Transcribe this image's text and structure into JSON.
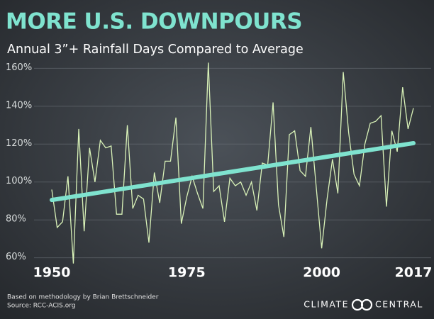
{
  "chart_data": {
    "type": "line",
    "title": "MORE U.S. DOWNPOURS",
    "subtitle": "Annual 3”+ Rainfall Days Compared to Average",
    "x": [
      1950,
      1951,
      1952,
      1953,
      1954,
      1955,
      1956,
      1957,
      1958,
      1959,
      1960,
      1961,
      1962,
      1963,
      1964,
      1965,
      1966,
      1967,
      1968,
      1969,
      1970,
      1971,
      1972,
      1973,
      1974,
      1975,
      1976,
      1977,
      1978,
      1979,
      1980,
      1981,
      1982,
      1983,
      1984,
      1985,
      1986,
      1987,
      1988,
      1989,
      1990,
      1991,
      1992,
      1993,
      1994,
      1995,
      1996,
      1997,
      1998,
      1999,
      2000,
      2001,
      2002,
      2003,
      2004,
      2005,
      2006,
      2007,
      2008,
      2009,
      2010,
      2011,
      2012,
      2013,
      2014,
      2015,
      2016,
      2017
    ],
    "series": [
      {
        "color": "#d9f2b8",
        "values": [
          96,
          76,
          79,
          103,
          57,
          128,
          74,
          118,
          100,
          122,
          118,
          119,
          83,
          83,
          130,
          86,
          93,
          91,
          68,
          105,
          89,
          111,
          111,
          134,
          78,
          92,
          103,
          94,
          86,
          163,
          95,
          98,
          79,
          102,
          98,
          100,
          93,
          100,
          85,
          110,
          109,
          142,
          88,
          71,
          125,
          127,
          106,
          103,
          129,
          97,
          65,
          91,
          112,
          94,
          158,
          126,
          104,
          98,
          120,
          131,
          132,
          135,
          87,
          127,
          116,
          150,
          128,
          139
        ]
      }
    ],
    "trend": {
      "x": [
        1950,
        2017
      ],
      "values": [
        90.5,
        120.5
      ],
      "color": "#7fe3cf"
    },
    "xlim": [
      1950,
      2017
    ],
    "xticks": [
      1950,
      1975,
      2000,
      2017
    ],
    "ylim": [
      58,
      165
    ],
    "yticks": [
      {
        "value": 60,
        "label": "60%"
      },
      {
        "value": 80,
        "label": "80%"
      },
      {
        "value": 100,
        "label": "100%"
      },
      {
        "value": 120,
        "label": "120%"
      },
      {
        "value": 140,
        "label": "140%"
      },
      {
        "value": 160,
        "label": "160%"
      }
    ],
    "grid": true,
    "notes": [
      "Based on methodology by Brian Brettschneider",
      "Source: RCC-ACIS.org"
    ],
    "logo": [
      "CLIMATE",
      "CENTRAL"
    ]
  }
}
